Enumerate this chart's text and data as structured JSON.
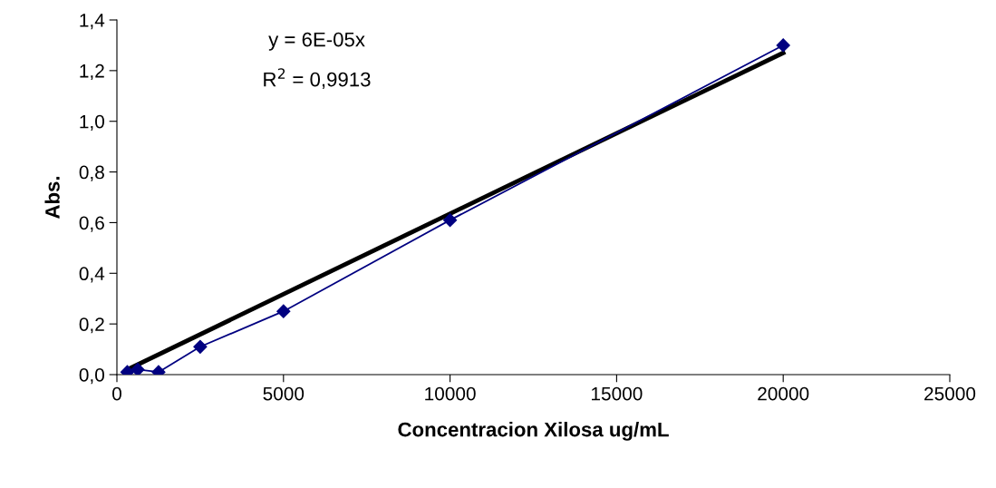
{
  "chart_data": {
    "type": "line",
    "xlabel": "Concentracion Xilosa ug/mL",
    "ylabel": "Abs.",
    "series": [
      {
        "color": "#000080",
        "marker": "diamond",
        "x": [
          312,
          625,
          1250,
          2500,
          5000,
          10000,
          20000
        ],
        "values": [
          0.01,
          0.02,
          0.01,
          0.11,
          0.25,
          0.61,
          1.3
        ]
      },
      {
        "color": "#000000",
        "marker": "none",
        "x": [
          312,
          20000
        ],
        "values": [
          0.02,
          1.27
        ]
      }
    ],
    "xlim": [
      0,
      25000
    ],
    "xticks": [
      0,
      5000,
      10000,
      15000,
      20000,
      25000
    ],
    "ylim": [
      0,
      1.4
    ],
    "yticks": [
      {
        "value": 0,
        "label": "0,0"
      },
      {
        "value": 0.2,
        "label": "0,2"
      },
      {
        "value": 0.4,
        "label": "0,4"
      },
      {
        "value": 0.6,
        "label": "0,6"
      },
      {
        "value": 0.8,
        "label": "0,8"
      },
      {
        "value": 1.0,
        "label": "1,0"
      },
      {
        "value": 1.2,
        "label": "1,2"
      },
      {
        "value": 1.4,
        "label": "1,4"
      }
    ],
    "annotations": [
      "y = 6E-05x",
      "R$^{2}$ = 0,9913"
    ],
    "grid": false,
    "legend": false
  }
}
